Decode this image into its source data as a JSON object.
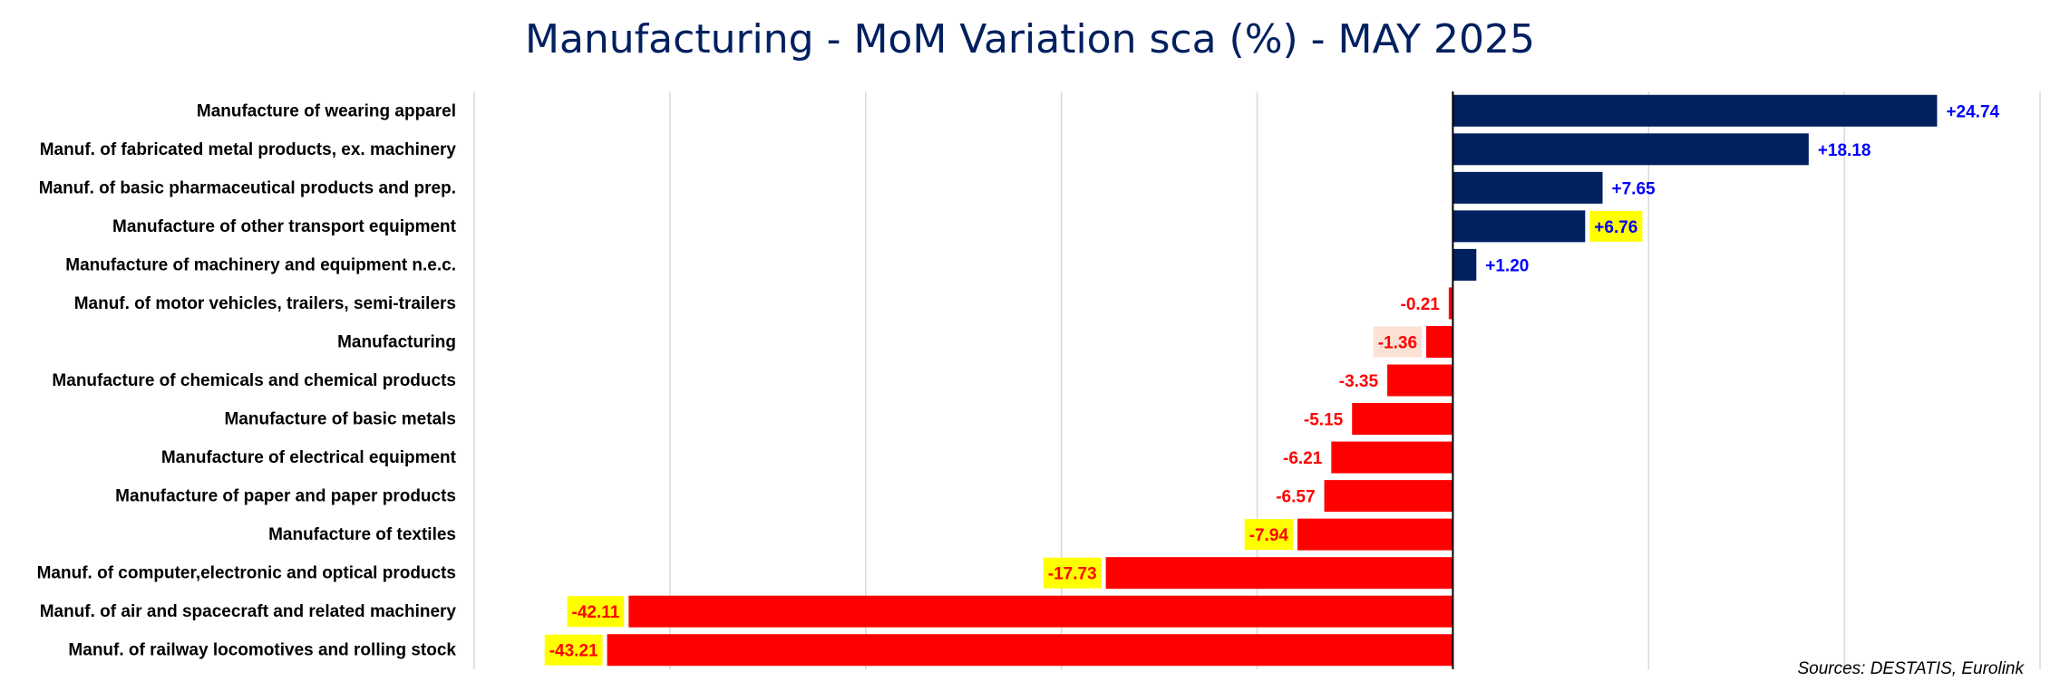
{
  "chart_data": {
    "type": "bar",
    "orientation": "horizontal",
    "title": "Manufacturing - MoM Variation sca  (%)  - MAY 2025",
    "xlim": [
      -50,
      30
    ],
    "grid": true,
    "grid_step": 10,
    "legend": "none",
    "categories": [
      "Manufacture of wearing apparel",
      "Manuf. of fabricated metal products, ex. machinery",
      "Manuf. of basic pharmaceutical products and prep.",
      "Manufacture of other transport equipment",
      "Manufacture of machinery and equipment n.e.c.",
      "Manuf. of motor vehicles, trailers, semi-trailers",
      "Manufacturing",
      "Manufacture of chemicals and chemical products",
      "Manufacture of basic metals",
      "Manufacture of electrical equipment",
      "Manufacture of paper and paper products",
      "Manufacture of textiles",
      "Manuf. of computer,electronic and optical products",
      "Manuf. of air and spacecraft and related machinery",
      "Manuf. of railway locomotives and rolling stock"
    ],
    "values": [
      24.74,
      18.18,
      7.65,
      6.76,
      1.2,
      -0.21,
      -1.36,
      -3.35,
      -5.15,
      -6.21,
      -6.57,
      -7.94,
      -17.73,
      -42.11,
      -43.21
    ],
    "data_labels": [
      "+24.74",
      "+18.18",
      "+7.65",
      "+6.76",
      "+1.20",
      "-0.21",
      "-1.36",
      "-3.35",
      "-5.15",
      "-6.21",
      "-6.57",
      "-7.94",
      "-17.73",
      "-42.11",
      "-43.21"
    ],
    "label_highlights": [
      "",
      "",
      "",
      "#ffff00",
      "",
      "",
      "#fbe2d5",
      "",
      "",
      "",
      "",
      "#ffff00",
      "#ffff00",
      "#ffff00",
      "#ffff00"
    ],
    "colors": {
      "positive": "#002060",
      "negative": "#ff0000",
      "positive_label": "#0000ff",
      "negative_label": "#ff0000",
      "title": "#002060",
      "grid": "#d9d9d9"
    }
  },
  "source": "Sources: DESTATIS, Eurolink"
}
